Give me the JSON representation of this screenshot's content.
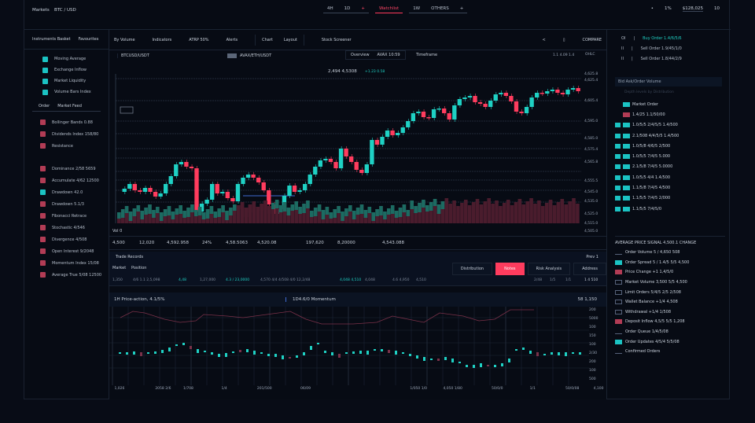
{
  "topbar": {
    "left_items": [
      "Markets",
      "BTC / USD"
    ],
    "tabs": [
      {
        "a": "4H",
        "b": "1D",
        "c": "+"
      },
      {
        "label": "Watchlist",
        "active": true
      },
      {
        "a": "1W",
        "b": "OTHERS",
        "c": "+"
      }
    ],
    "right": {
      "dot": "•",
      "pct": "1%",
      "account": "$128,025",
      "mode": "10"
    }
  },
  "left_panel": {
    "header": [
      "Instruments Basket",
      "Favourites"
    ],
    "group1": [
      {
        "label": "Moving Average",
        "color": "teal"
      },
      {
        "label": "Exchange Inflow",
        "color": "teal"
      },
      {
        "label": "Market Liquidity",
        "color": "teal"
      },
      {
        "label": "Volume Bars Index",
        "color": "teal"
      }
    ],
    "subheader": [
      "Order",
      "Market Feed"
    ],
    "group2": [
      {
        "label": "Bollinger Bands 0.88",
        "color": "red"
      },
      {
        "label": "Dividends Index 158/80",
        "color": "red"
      },
      {
        "label": "Resistance",
        "color": "red"
      },
      {
        "label": "Dominance 2/58 5659",
        "color": "red"
      },
      {
        "label": "Accumulate 4/62 12500",
        "color": "red"
      },
      {
        "label": "Drawdown 42.0",
        "color": "teal"
      },
      {
        "label": "Drawdown 5.1/3",
        "color": "red"
      },
      {
        "label": "Fibonacci Retrace",
        "color": "red"
      },
      {
        "label": "Stochastic 4/546",
        "color": "red"
      },
      {
        "label": "Divergence 4/508",
        "color": "red"
      },
      {
        "label": "Open Interest 9/2048",
        "color": "red"
      },
      {
        "label": "Momentum Index 15/08",
        "color": "red"
      },
      {
        "label": "Average True 5/08 12500",
        "color": "red"
      }
    ]
  },
  "chart_toolbar": {
    "items": [
      "By Volume",
      "Indicators",
      "ATRP 50%",
      "Alerts"
    ],
    "seg": [
      "Chart",
      "Layout"
    ],
    "extra": "Stock Screener",
    "icons": [
      "<",
      "▯"
    ],
    "right_label": "COMPARE"
  },
  "chart_header": {
    "symbol": "BTCUSD/USDT",
    "price_box": "AVAX/ETH/USDT",
    "dropdown": "Overview",
    "dropdown_val": "AVAX 10:59",
    "range": "Timeframe",
    "time": "1.1 4.09 1.4",
    "ohlc": "OHLC",
    "price_label": "2,494 4,5308",
    "price_chg": "+1.23 0.58"
  },
  "price_axis": [
    "4,625.8",
    "4,625.4",
    "4,605.4",
    "4,595.0",
    "4,585.0",
    "4,575.4",
    "4,565.8",
    "4,555.5",
    "4,545.0",
    "4,535.0",
    "4,525.0",
    "4,515.0",
    "4,505.0"
  ],
  "stats": {
    "label": "Vol 0",
    "values": [
      "4,500",
      "12,020",
      "4,592.958",
      "24%",
      "4,58.5063",
      "4,520.08",
      "197,620",
      "8,20000",
      "4,543.088"
    ]
  },
  "trades": {
    "title": "Trade Records",
    "page": "Prev 1",
    "cols": [
      "Market",
      "Position",
      "Volume"
    ],
    "buttons": [
      {
        "label": "Distribution",
        "active": false
      },
      {
        "label": "Notes",
        "active": true
      },
      {
        "label": "Risk Analysis",
        "active": false
      },
      {
        "label": "Address",
        "active": false
      }
    ],
    "row": [
      "1,350",
      "4/6 1.1 2,5,098",
      "4,48",
      "1,27,000",
      "4.3 / 23,0000",
      "4,570 4/4 4/508 4/0 12,2/48",
      "4,048 4,510",
      "4,048",
      "4.6 4,950",
      "4,510"
    ],
    "ticks": [
      "2/48",
      "2/48",
      "1/5",
      "1/1",
      "5/75",
      "2/81",
      "1/1/0",
      "2/2",
      "1/4",
      "1 4 510"
    ]
  },
  "subchart": {
    "title": "1H Price-action, 4.1/5%",
    "mid_label": "1D4.6/0 Momentum",
    "right_label": "58 1,150",
    "y_axis": [
      "200",
      "5000",
      "100",
      "150",
      "100",
      "2/30",
      "200",
      "100",
      "500"
    ],
    "x_axis": [
      "1,026",
      "2058 2/6",
      "1/708",
      "1/4",
      "201/500",
      "06/09",
      "1/050 1/0",
      "4,050 1/80",
      "50/0/0",
      "1/1",
      "50/0/08",
      "4,100"
    ]
  },
  "right_panel": {
    "top": [
      {
        "tag": "OI",
        "label": "Buy Order 1.4/6/5/6",
        "highlight": true
      },
      {
        "tag": "II",
        "label": "Sell Order 1.9/45/1/0",
        "highlight": false
      },
      {
        "tag": "II",
        "label": "Sell Order 1.8/44/2/9",
        "highlight": false
      }
    ],
    "order_book": {
      "title": "Bid Ask/Order Volume",
      "subtitle": "Depth levels by Distribution",
      "rows": [
        {
          "left": "",
          "color": "teal",
          "label": "Market Order"
        },
        {
          "left": "",
          "color": "red",
          "label": "1.4/25 1.1/50/00"
        },
        {
          "left": "21",
          "color": "teal",
          "label": "1.0/5/5 2/4/5/5 1.4/500"
        },
        {
          "left": "21",
          "color": "teal",
          "label": "2.1/508 4/4/5/5 1.4/500"
        },
        {
          "left": "21",
          "color": "teal",
          "label": "1.0/5/8 4/6/5 2/500"
        },
        {
          "left": "21",
          "color": "teal",
          "label": "1.0/5/5 7/4/5 5.000"
        },
        {
          "left": "21",
          "color": "teal",
          "label": "2.1/5/8 7/4/5 5.0000"
        },
        {
          "left": "21",
          "color": "teal",
          "label": "1.0/5/5 4/4 1.4/500"
        },
        {
          "left": "21",
          "color": "teal",
          "label": "1.1/5/8 7/4/5 4/500"
        },
        {
          "left": "21",
          "color": "teal",
          "label": "1.1/5/5 7/4/5 2/000"
        },
        {
          "left": "21",
          "color": "teal",
          "label": "1.1/5/5 7/4/5/0"
        }
      ]
    },
    "feed": {
      "title": "AVERAGE PRICE SIGNAL 4,500.1 CHANGE",
      "rows": [
        {
          "tag": "none",
          "label": "Order Volume 5 / 4,650 508"
        },
        {
          "tag": "teal",
          "label": "Order Spread 5 / 1.4/5 5/5 4,500"
        },
        {
          "tag": "red",
          "label": "Price Change +1 1,4/5/0",
          "accent": true
        },
        {
          "tag": "box",
          "label": "Market Volume 3,500 5/5 4,500"
        },
        {
          "tag": "box",
          "label": "Limit Orders 5/4/5 2/5 2/508"
        },
        {
          "tag": "box",
          "label": "Wallet Balance +1/4 4,508"
        },
        {
          "tag": "box",
          "label": "Withdrawal +1/4 1/508"
        },
        {
          "tag": "red",
          "label": "Deposit Inflow 4,5/5 5/5 1,208"
        },
        {
          "tag": "none",
          "label": "Order Queue 1/4/5/08"
        },
        {
          "tag": "teal",
          "label": "Order Updates 4/5/4 5/5/08"
        },
        {
          "tag": "none",
          "label": "Confirmed Orders"
        }
      ]
    }
  },
  "colors": {
    "up": "#1fd1c4",
    "down": "#ff3c5e",
    "bg": "#070b14",
    "panel": "#0b1322",
    "grid": "#2a3444",
    "volume_up": "#1c6b62",
    "volume_down": "#4a1c2d"
  }
}
